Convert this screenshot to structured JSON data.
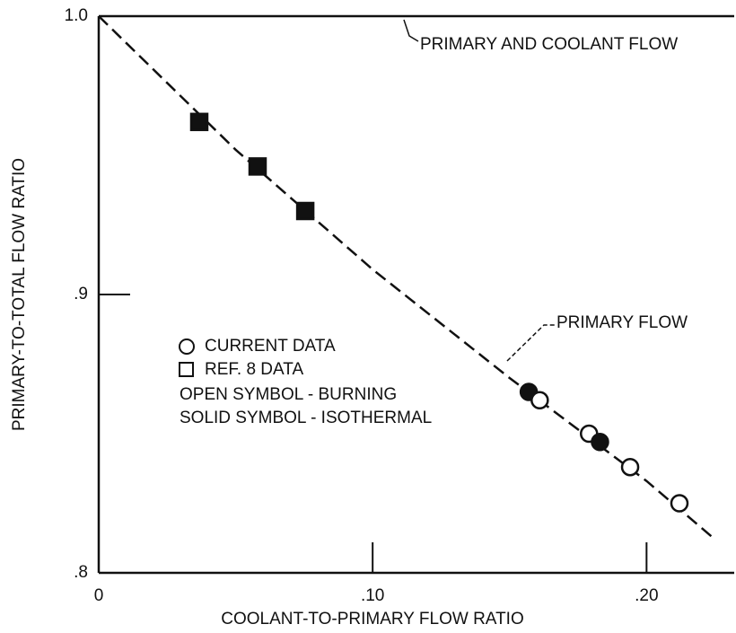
{
  "chart_data": {
    "type": "scatter",
    "x_label": "COOLANT-TO-PRIMARY FLOW RATIO",
    "y_label": "PRIMARY-TO-TOTAL FLOW RATIO",
    "xlim": [
      0,
      0.232
    ],
    "ylim": [
      0.8,
      1.0
    ],
    "xticks": [
      0,
      {
        "value": 0.1,
        "label": ".10"
      },
      {
        "value": 0.2,
        "label": ".20"
      }
    ],
    "yticks": [
      {
        "value": 0.8,
        "label": ".8"
      },
      {
        "value": 0.9,
        "label": ".9"
      },
      {
        "value": 1.0,
        "label": "1.0"
      }
    ],
    "lines": [
      {
        "name": "PRIMARY AND COOLANT FLOW",
        "style": "solid",
        "x": [
          0,
          0.232
        ],
        "values": [
          1.0,
          1.0
        ]
      },
      {
        "name": "PRIMARY FLOW",
        "style": "dashed",
        "x": [
          0,
          0.05,
          0.1,
          0.15,
          0.2,
          0.225
        ],
        "values": [
          1.0,
          0.952,
          0.909,
          0.87,
          0.833,
          0.812
        ]
      }
    ],
    "series": [
      {
        "name": "CURRENT DATA",
        "marker": "circle",
        "color": "#111111",
        "x": [
          0.157,
          0.161,
          0.179,
          0.183,
          0.194,
          0.212
        ],
        "values": [
          0.865,
          0.862,
          0.85,
          0.847,
          0.838,
          0.825
        ],
        "filled": [
          true,
          false,
          false,
          true,
          false,
          false
        ]
      },
      {
        "name": "REF. 8 DATA",
        "marker": "square",
        "color": "#111111",
        "x": [
          0.0367,
          0.058,
          0.0754
        ],
        "values": [
          0.962,
          0.946,
          0.93
        ],
        "filled": [
          true,
          true,
          true
        ]
      }
    ],
    "notes": [
      "OPEN SYMBOL - BURNING",
      "SOLID SYMBOL - ISOTHERMAL"
    ]
  }
}
